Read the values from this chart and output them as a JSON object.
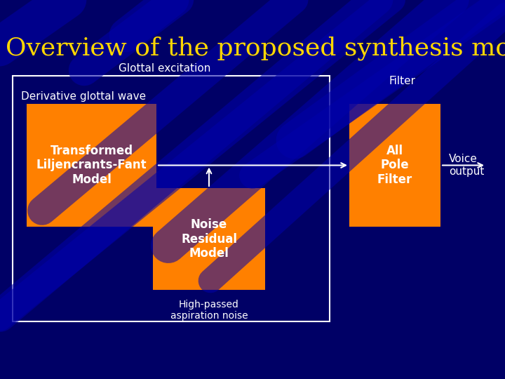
{
  "title": "Overview of the proposed synthesis model",
  "title_color": "#FFD700",
  "title_fontsize": 26,
  "bg_color": "#000066",
  "label_glottal": "Glottal excitation",
  "label_derivative": "Derivative glottal wave",
  "label_filter": "Filter",
  "label_voice": "Voice\noutput",
  "label_highpassed": "High-passed\naspiration noise",
  "box1_label": "Transformed\nLiljencrants-Fant\nModel",
  "box2_label": "Noise\nResidual\nModel",
  "box3_label": "All\nPole\nFilter",
  "box_color": "#FF8000",
  "box_text_color": "#FFFFFF",
  "outer_box_color": "#FFFFFF",
  "white_color": "#FFFFFF",
  "stripe_color": "#0000AA",
  "stripe_widths": [
    40,
    30,
    35,
    25,
    38,
    28,
    32,
    36,
    27,
    33
  ],
  "stripe_angles": [
    -35,
    -40,
    -38,
    -42,
    -36,
    -39,
    -37,
    -41,
    -35,
    -40
  ],
  "stripe_x": [
    -2,
    1,
    3,
    5,
    7,
    -1,
    2,
    4,
    6,
    0
  ],
  "stripe_y": [
    3,
    6,
    1,
    8,
    4,
    10,
    2,
    7,
    5,
    9
  ],
  "stripe_len": [
    12,
    14,
    11,
    13,
    12,
    15,
    11,
    13,
    12,
    14
  ]
}
